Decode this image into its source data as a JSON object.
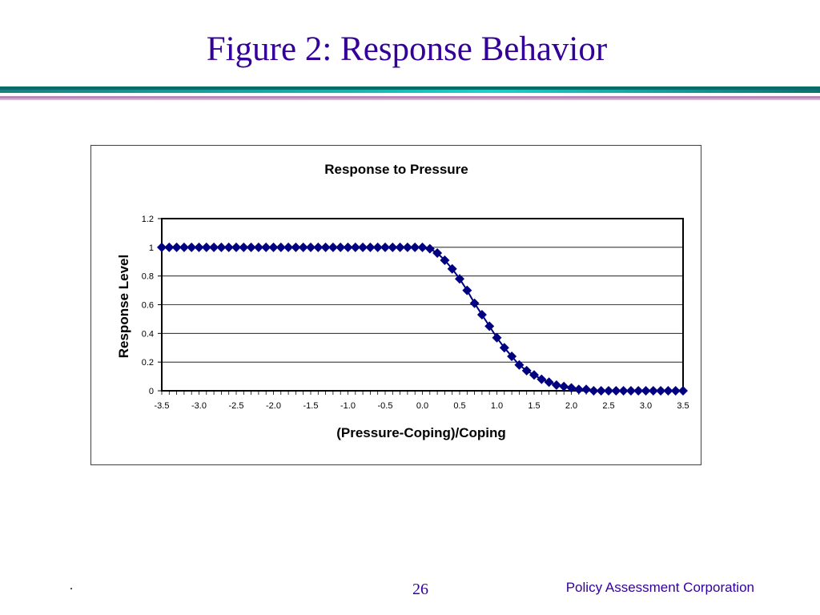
{
  "slide": {
    "title": "Figure 2: Response Behavior",
    "footer_left": ".",
    "page_number": "26",
    "organization": "Policy Assessment Corporation"
  },
  "colors": {
    "title": "#330099",
    "series": "#000080",
    "teal_rule": "#19b8b0",
    "pink_rule": "#b889b6"
  },
  "chart_data": {
    "type": "scatter",
    "title": "Response to Pressure",
    "xlabel": "(Pressure-Coping)/Coping",
    "ylabel": "Response Level",
    "xlim": [
      -3.5,
      3.5
    ],
    "ylim": [
      0,
      1.2
    ],
    "x_ticks": [
      "-3.5",
      "-3.0",
      "-2.5",
      "-2.0",
      "-1.5",
      "-1.0",
      "-0.5",
      "0.0",
      "0.5",
      "1.0",
      "1.5",
      "2.0",
      "2.5",
      "3.0",
      "3.5"
    ],
    "y_ticks": [
      "0",
      "0.2",
      "0.4",
      "0.6",
      "0.8",
      "1",
      "1.2"
    ],
    "grid": "horizontal",
    "marker": "diamond",
    "series": [
      {
        "x": [
          -3.5,
          -3.4,
          -3.3,
          -3.2,
          -3.1,
          -3.0,
          -2.9,
          -2.8,
          -2.7,
          -2.6,
          -2.5,
          -2.4,
          -2.3,
          -2.2,
          -2.1,
          -2.0,
          -1.9,
          -1.8,
          -1.7,
          -1.6,
          -1.5,
          -1.4,
          -1.3,
          -1.2,
          -1.1,
          -1.0,
          -0.9,
          -0.8,
          -0.7,
          -0.6,
          -0.5,
          -0.4,
          -0.3,
          -0.2,
          -0.1,
          0.0,
          0.1,
          0.2,
          0.3,
          0.4,
          0.5,
          0.6,
          0.7,
          0.8,
          0.9,
          1.0,
          1.1,
          1.2,
          1.3,
          1.4,
          1.5,
          1.6,
          1.7,
          1.8,
          1.9,
          2.0,
          2.1,
          2.2,
          2.3,
          2.4,
          2.5,
          2.6,
          2.7,
          2.8,
          2.9,
          3.0,
          3.1,
          3.2,
          3.3,
          3.4,
          3.5
        ],
        "values": [
          1,
          1,
          1,
          1,
          1,
          1,
          1,
          1,
          1,
          1,
          1,
          1,
          1,
          1,
          1,
          1,
          1,
          1,
          1,
          1,
          1,
          1,
          1,
          1,
          1,
          1,
          1,
          1,
          1,
          1,
          1,
          1,
          1,
          1,
          1,
          1,
          0.99,
          0.96,
          0.91,
          0.85,
          0.78,
          0.7,
          0.61,
          0.53,
          0.45,
          0.37,
          0.3,
          0.24,
          0.18,
          0.14,
          0.11,
          0.08,
          0.06,
          0.04,
          0.03,
          0.02,
          0.01,
          0.01,
          0,
          0,
          0,
          0,
          0,
          0,
          0,
          0,
          0,
          0,
          0,
          0,
          0
        ]
      }
    ]
  }
}
